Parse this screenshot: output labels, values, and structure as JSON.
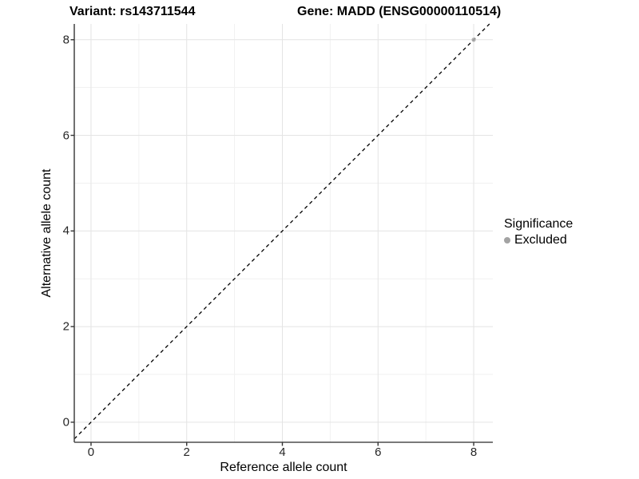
{
  "title": {
    "variant": "Variant: rs143711544",
    "gene": "Gene: MADD (ENSG00000110514)"
  },
  "legend": {
    "title": "Significance",
    "items": [
      {
        "label": "Excluded",
        "color": "#a3a3a3"
      }
    ]
  },
  "chart_data": {
    "type": "scatter",
    "title": "Variant: rs143711544    Gene: MADD (ENSG00000110514)",
    "xlabel": "Reference allele count",
    "ylabel": "Alternative allele count",
    "xlim": [
      -0.35,
      8.4
    ],
    "ylim": [
      -0.42,
      8.33
    ],
    "x_ticks": [
      0,
      2,
      4,
      6,
      8
    ],
    "y_ticks": [
      0,
      2,
      4,
      6,
      8
    ],
    "x_minor_ticks": [
      1,
      3,
      5,
      7
    ],
    "y_minor_ticks": [
      1,
      3,
      5,
      7
    ],
    "grid": true,
    "legend_position": "right",
    "series": [
      {
        "name": "Excluded",
        "color": "#a3a3a3",
        "points": [
          [
            8,
            8
          ]
        ]
      }
    ],
    "reference_line": {
      "type": "identity",
      "style": "dashed",
      "color": "#000000"
    },
    "colors": {
      "grid_major": "#e4e4e4",
      "grid_minor": "#f1f1f1",
      "axis_line": "#4d4d4d",
      "tick_mark": "#333333",
      "point_fill": "#a8a8a8"
    }
  }
}
